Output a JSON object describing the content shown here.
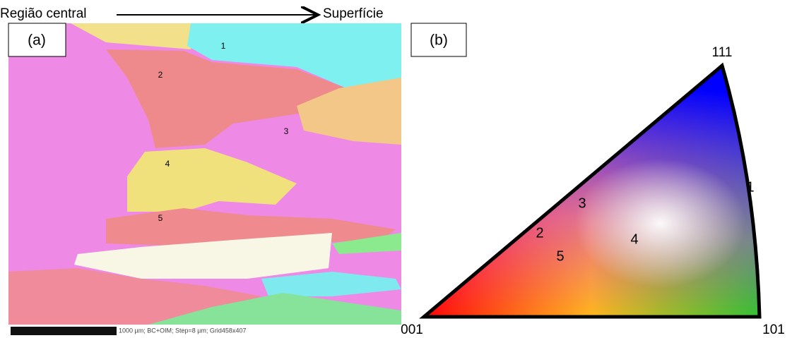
{
  "header": {
    "left": "Região central",
    "right": "Superfície"
  },
  "panel_a": {
    "label": "(a)",
    "grains": [
      "1",
      "2",
      "3",
      "4",
      "5"
    ],
    "scale_text": "1000 µm; BC+OIM; Step=8 µm; Grid458x407"
  },
  "panel_b": {
    "label": "(b)",
    "vertices": {
      "top": "111",
      "left": "001",
      "right": "101"
    },
    "points": [
      "1",
      "2",
      "3",
      "4",
      "5"
    ]
  }
}
